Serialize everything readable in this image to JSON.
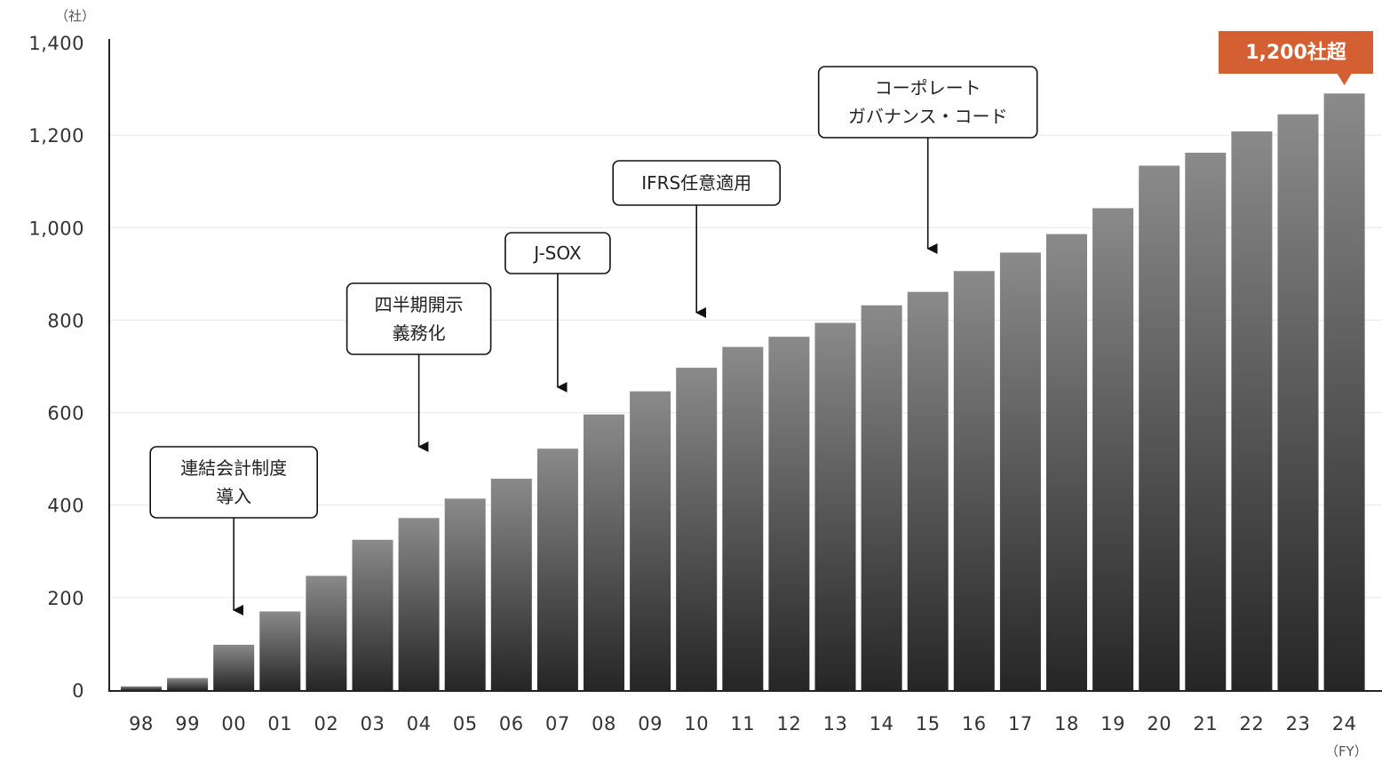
{
  "chart_data": {
    "type": "bar",
    "y_unit_label": "（社）",
    "x_unit_label": "（FY）",
    "categories": [
      "98",
      "99",
      "00",
      "01",
      "02",
      "03",
      "04",
      "05",
      "06",
      "07",
      "08",
      "09",
      "10",
      "11",
      "12",
      "13",
      "14",
      "15",
      "16",
      "17",
      "18",
      "19",
      "20",
      "21",
      "22",
      "23",
      "24"
    ],
    "values": [
      8,
      26,
      98,
      170,
      247,
      325,
      372,
      414,
      457,
      522,
      596,
      646,
      697,
      742,
      764,
      794,
      832,
      861,
      906,
      946,
      986,
      1042,
      1134,
      1162,
      1208,
      1245,
      1290
    ],
    "ylim": [
      0,
      1400
    ],
    "yticks": [
      0,
      200,
      400,
      600,
      800,
      1000,
      1200,
      1400
    ],
    "ytick_labels": [
      "0",
      "200",
      "400",
      "600",
      "800",
      "1,000",
      "1,200",
      "1,400"
    ],
    "grid": true,
    "legend": "none",
    "annotations": [
      {
        "category": "00",
        "lines": [
          "連結会計制度",
          "導入"
        ]
      },
      {
        "category": "04",
        "lines": [
          "四半期開示",
          "義務化"
        ]
      },
      {
        "category": "07",
        "lines": [
          "J-SOX"
        ]
      },
      {
        "category": "10",
        "lines": [
          "IFRS任意適用"
        ]
      },
      {
        "category": "15",
        "lines": [
          "コーポレート",
          "ガバナンス・コード"
        ]
      }
    ],
    "highlight": {
      "category": "24",
      "label": "1,200社超"
    }
  },
  "colors": {
    "bar_top": "#8a8a8a",
    "bar_bottom": "#262626",
    "axis": "#222222",
    "grid": "#e6e6e6",
    "highlight": "#d35f32"
  }
}
